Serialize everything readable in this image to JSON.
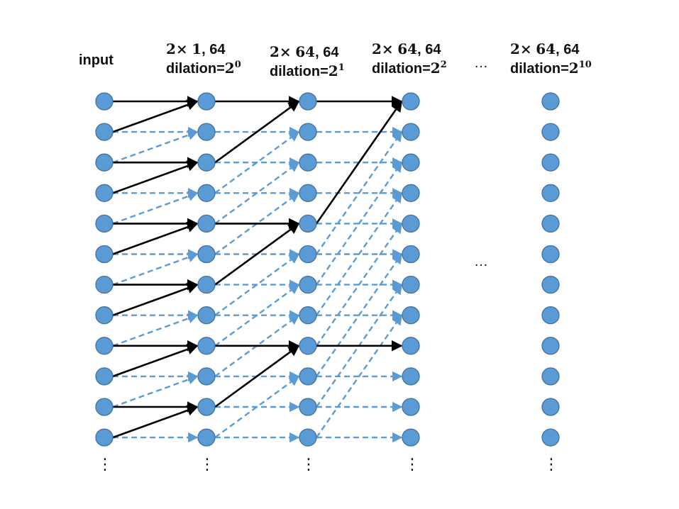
{
  "headers": {
    "input": "input",
    "layer1": {
      "line1_math": "2×",
      "line1_num": "1",
      "line1_tail": ", 64",
      "line2_prefix": "dilation=",
      "base": "2",
      "exp": "0"
    },
    "layer2": {
      "line1_math": "2×",
      "line1_num": "64",
      "line1_tail": ", 64",
      "line2_prefix": "dilation=",
      "base": "2",
      "exp": "1"
    },
    "layer3": {
      "line1_math": "2×",
      "line1_num": "64",
      "line1_tail": ", 64",
      "line2_prefix": "dilation=",
      "base": "2",
      "exp": "2"
    },
    "layer_last": {
      "line1_math": "2×",
      "line1_num": "64",
      "line1_tail": ", 64",
      "line2_prefix": "dilation=",
      "base": "2",
      "exp": "10"
    }
  },
  "ellipsis_top": "…",
  "ellipsis_mid": "…",
  "vertical_ellipsis": "⋮",
  "colors": {
    "node_fill": "#5b9bd5",
    "node_stroke": "#41719c",
    "active_edge": "#000000",
    "inactive_edge": "#5b9bd5"
  },
  "network": {
    "rows": 12,
    "columns": 5,
    "dilations": [
      1,
      2,
      4
    ],
    "active_paths_target_rows": [
      0,
      8
    ]
  }
}
